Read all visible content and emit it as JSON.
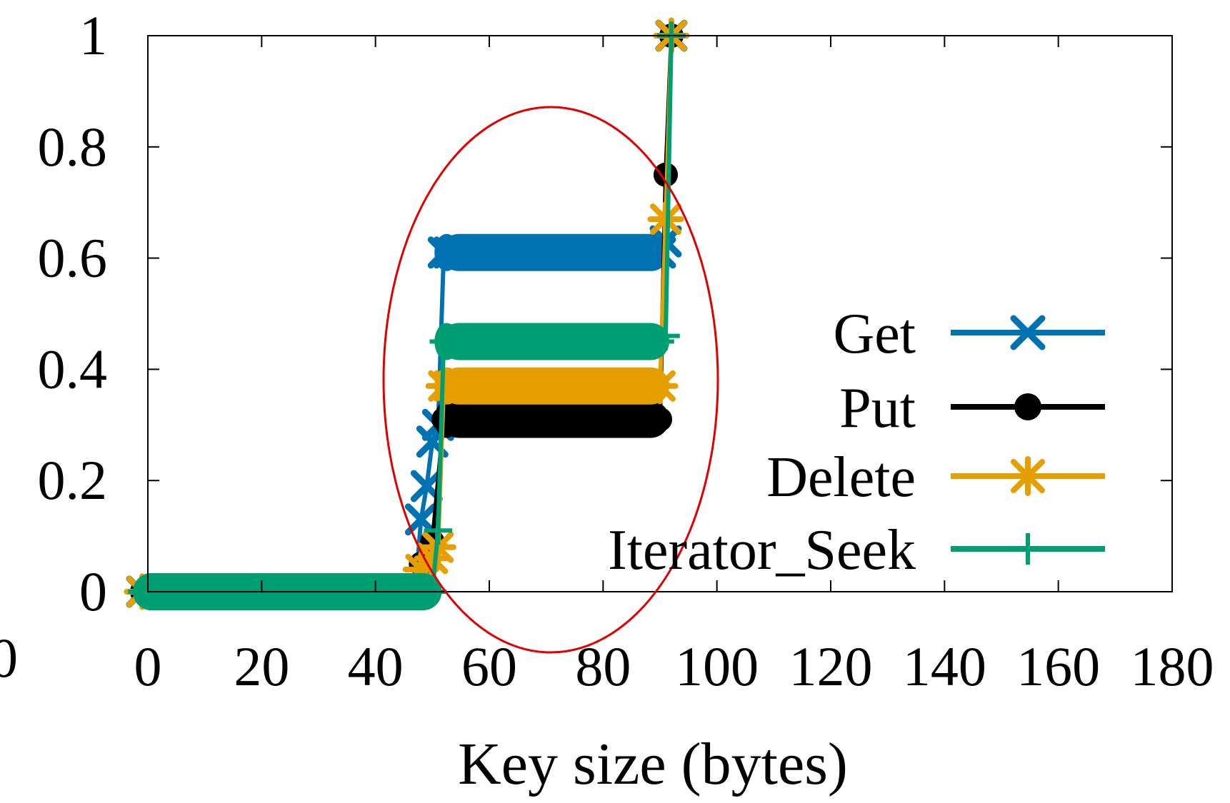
{
  "chart_data": {
    "type": "line",
    "title": "",
    "xlabel": "Key size (bytes)",
    "ylabel": "",
    "xlim": [
      0,
      180
    ],
    "ylim": [
      0,
      1
    ],
    "x_ticks": [
      "0",
      "20",
      "40",
      "60",
      "80",
      "100",
      "120",
      "140",
      "160",
      "180"
    ],
    "y_ticks": [
      "0",
      "0.2",
      "0.4",
      "0.6",
      "0.8",
      "1"
    ],
    "stray_tick_label": "0",
    "grid": false,
    "legend_position": "lower-right",
    "annotation": "red ellipse highlighting key sizes 40-100",
    "series": [
      {
        "name": "Get",
        "color": "#0072b2",
        "marker": "x",
        "x": [
          -1,
          47,
          48,
          49,
          50,
          51,
          52,
          53,
          90,
          91,
          92
        ],
        "y": [
          0,
          0,
          0.13,
          0.19,
          0.27,
          0.3,
          0.61,
          0.61,
          0.61,
          0.63,
          1.0
        ]
      },
      {
        "name": "Put",
        "color": "#000000",
        "marker": "circle",
        "x": [
          -1,
          47,
          48,
          50,
          52,
          53,
          90,
          91,
          92
        ],
        "y": [
          0,
          0,
          0.05,
          0.09,
          0.31,
          0.31,
          0.31,
          0.75,
          1.0
        ]
      },
      {
        "name": "Delete",
        "color": "#e69f00",
        "marker": "star",
        "x": [
          -1,
          47,
          48,
          50,
          51,
          52,
          53,
          90,
          91,
          92
        ],
        "y": [
          0,
          0,
          0.04,
          0.06,
          0.08,
          0.37,
          0.37,
          0.37,
          0.67,
          1.0
        ]
      },
      {
        "name": "Iterator_Seek",
        "color": "#009e73",
        "marker": "plus",
        "x": [
          -1,
          50,
          51,
          52,
          53,
          90,
          91,
          92
        ],
        "y": [
          0,
          0,
          0.11,
          0.45,
          0.45,
          0.45,
          0.46,
          1.0
        ]
      }
    ]
  }
}
